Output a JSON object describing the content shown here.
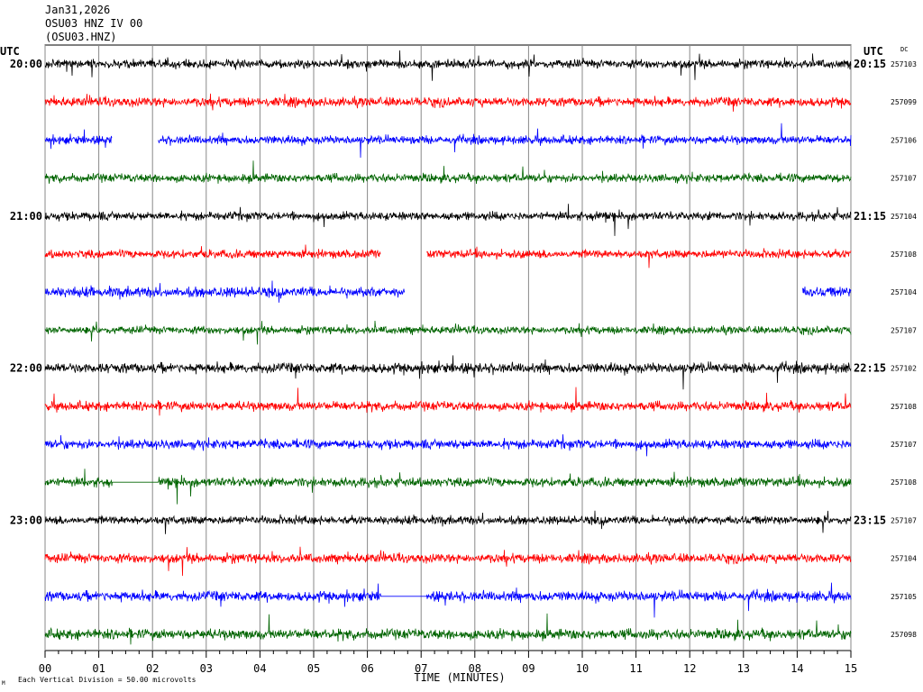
{
  "header": {
    "date": "Jan31,2026",
    "station_line": "OSU03 HNZ IV 00",
    "channel_line": "(OSU03.HNZ)"
  },
  "axis": {
    "left_timezone": "UTC",
    "right_timezone": "UTC",
    "right_column_label": "DC",
    "xlabel": "TIME (MINUTES)",
    "xticks": [
      "00",
      "01",
      "02",
      "03",
      "04",
      "05",
      "06",
      "07",
      "08",
      "09",
      "10",
      "11",
      "12",
      "13",
      "14",
      "15"
    ],
    "footer_note": "Each Vertical Division =   50.00 microvolts",
    "footer_mark": "M"
  },
  "colors": {
    "black": "#000000",
    "red": "#ff0000",
    "blue": "#0000ff",
    "green": "#006400",
    "grid": "#888888"
  },
  "chart_data": {
    "type": "line",
    "title": "OSU03 HNZ IV 00",
    "xlabel": "TIME (MINUTES)",
    "xlim": [
      0,
      15
    ],
    "traces": [
      {
        "hour_label": "20:00",
        "end_label": "20:15",
        "color": "black",
        "dc": "257103",
        "gaps": [],
        "amp": 1.0
      },
      {
        "hour_label": "",
        "end_label": "",
        "color": "red",
        "dc": "257099",
        "gaps": [],
        "amp": 1.1
      },
      {
        "hour_label": "",
        "end_label": "",
        "color": "blue",
        "dc": "257106",
        "gaps": [
          [
            1.25,
            2.1
          ]
        ],
        "amp": 1.0
      },
      {
        "hour_label": "",
        "end_label": "",
        "color": "green",
        "dc": "257107",
        "gaps": [],
        "amp": 1.0
      },
      {
        "hour_label": "21:00",
        "end_label": "21:15",
        "color": "black",
        "dc": "257104",
        "gaps": [],
        "amp": 1.0
      },
      {
        "hour_label": "",
        "end_label": "",
        "color": "red",
        "dc": "257108",
        "gaps": [
          [
            6.25,
            7.1
          ]
        ],
        "amp": 1.0
      },
      {
        "hour_label": "",
        "end_label": "",
        "color": "blue",
        "dc": "257104",
        "gaps": [
          [
            6.7,
            14.1
          ]
        ],
        "amp": 1.2
      },
      {
        "hour_label": "",
        "end_label": "",
        "color": "green",
        "dc": "257107",
        "gaps": [],
        "amp": 0.9
      },
      {
        "hour_label": "22:00",
        "end_label": "22:15",
        "color": "black",
        "dc": "257102",
        "gaps": [],
        "amp": 1.2
      },
      {
        "hour_label": "",
        "end_label": "",
        "color": "red",
        "dc": "257108",
        "gaps": [],
        "amp": 1.1
      },
      {
        "hour_label": "",
        "end_label": "",
        "color": "blue",
        "dc": "257107",
        "gaps": [],
        "amp": 1.1
      },
      {
        "hour_label": "",
        "end_label": "",
        "color": "green",
        "dc": "257108",
        "gaps": [],
        "flat": [
          [
            1.25,
            2.1
          ]
        ],
        "amp": 1.1
      },
      {
        "hour_label": "23:00",
        "end_label": "23:15",
        "color": "black",
        "dc": "257107",
        "gaps": [],
        "amp": 1.0
      },
      {
        "hour_label": "",
        "end_label": "",
        "color": "red",
        "dc": "257104",
        "gaps": [],
        "amp": 1.1
      },
      {
        "hour_label": "",
        "end_label": "",
        "color": "blue",
        "dc": "257105",
        "gaps": [],
        "flat": [
          [
            6.25,
            7.1
          ]
        ],
        "amp": 1.2
      },
      {
        "hour_label": "",
        "end_label": "",
        "color": "green",
        "dc": "257098",
        "gaps": [],
        "amp": 1.2
      }
    ]
  }
}
